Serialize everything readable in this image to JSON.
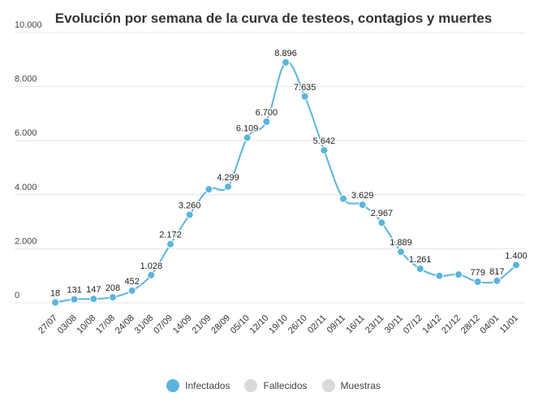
{
  "chart_data": {
    "type": "line",
    "title": "Evolución por semana de la curva de testeos, contagios y muertes",
    "xlabel": "",
    "ylabel": "",
    "ylim": [
      0,
      10000
    ],
    "y_ticks": [
      0,
      2000,
      4000,
      6000,
      8000,
      10000
    ],
    "y_tick_labels": [
      "0",
      "2.000",
      "4.000",
      "6.000",
      "8.000",
      "10.000"
    ],
    "grid": true,
    "legend_position": "bottom-center",
    "categories": [
      "27/07",
      "03/08",
      "10/08",
      "17/08",
      "24/08",
      "31/08",
      "07/09",
      "14/09",
      "21/09",
      "28/09",
      "05/10",
      "12/10",
      "19/10",
      "26/10",
      "02/11",
      "09/11",
      "16/11",
      "23/11",
      "30/11",
      "07/12",
      "14/12",
      "21/12",
      "28/12",
      "04/01",
      "11/01"
    ],
    "series": [
      {
        "name": "Infectados",
        "color": "#5bb4dd",
        "visible": true,
        "values": [
          18,
          131,
          147,
          208,
          452,
          1028,
          2172,
          3260,
          4200,
          4299,
          6109,
          6700,
          8896,
          7635,
          5642,
          3850,
          3629,
          2967,
          1889,
          1261,
          1000,
          1050,
          779,
          817,
          1400
        ],
        "data_labels": [
          "18",
          "131",
          "147",
          "208",
          "452",
          "1.028",
          "2.172",
          "3.260",
          "",
          "4.299",
          "6.109",
          "6.700",
          "8.896",
          "7.635",
          "5.642",
          "",
          "3.629",
          "2.967",
          "1.889",
          "1.261",
          "",
          "",
          "779",
          "817",
          "1.400"
        ]
      }
    ],
    "legend": [
      {
        "name": "Infectados",
        "color": "#5bb4dd",
        "active": true
      },
      {
        "name": "Fallecidos",
        "color": "#d9d9d9",
        "active": false
      },
      {
        "name": "Muestras",
        "color": "#d9d9d9",
        "active": false
      }
    ]
  }
}
